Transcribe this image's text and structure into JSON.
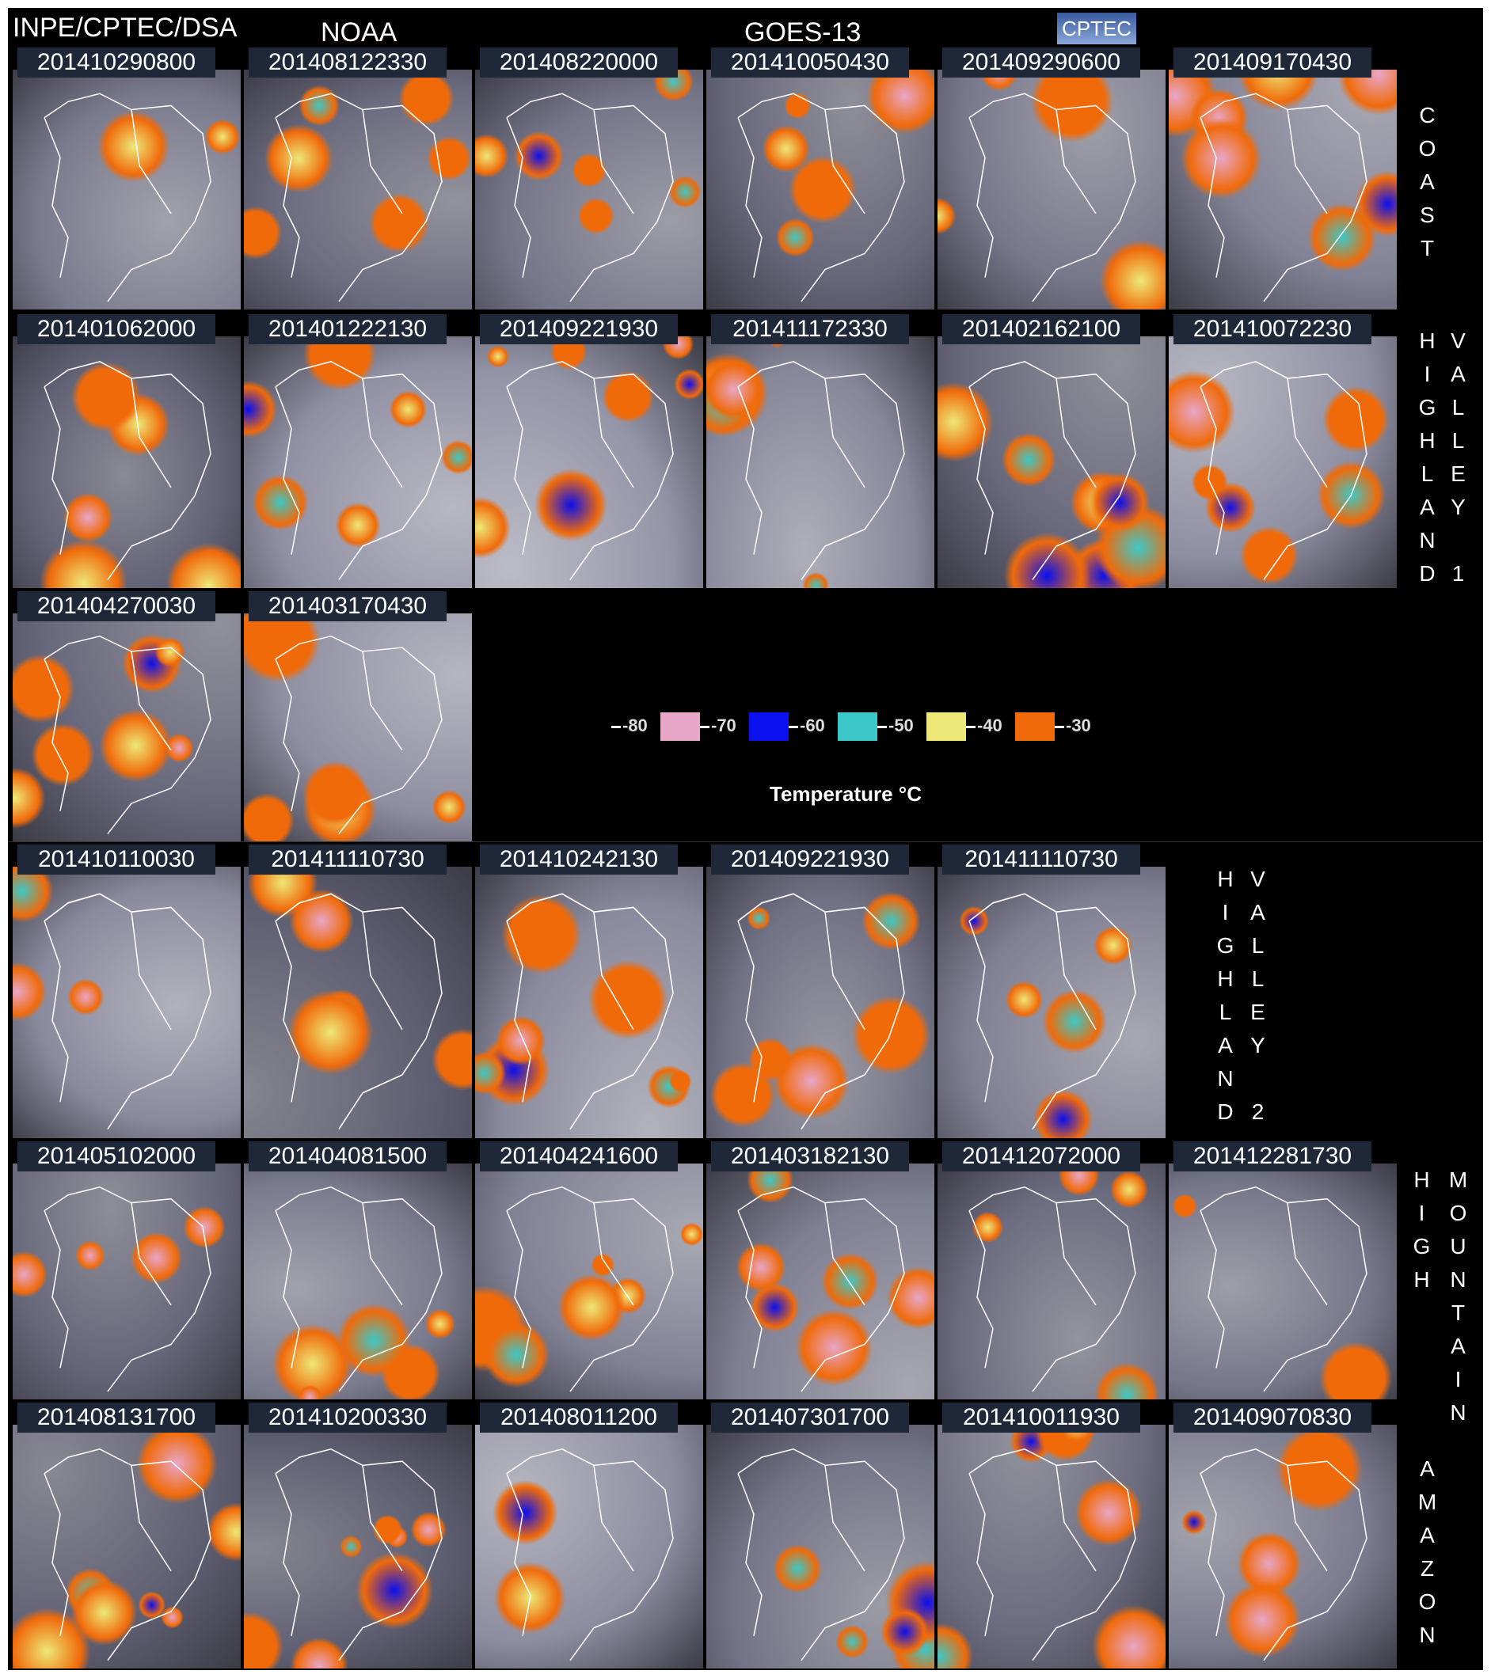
{
  "header": {
    "source": "INPE/CPTEC/DSA",
    "agency": "NOAA",
    "satellite": "GOES-13",
    "logo": "CPTEC"
  },
  "groups": [
    {
      "label": [
        "COAST"
      ],
      "rows": [
        [
          "201410290800",
          "201408122330",
          "201408220000",
          "201410050430",
          "201409290600",
          "201409170430"
        ]
      ]
    },
    {
      "label": [
        "HIGHLAND",
        "VALLEY 1"
      ],
      "rows": [
        [
          "201401062000",
          "201401222130",
          "201409221930",
          "201411172330",
          "201402162100",
          "201410072230"
        ],
        [
          "201404270030",
          "201403170430"
        ]
      ]
    },
    {
      "label": [
        "HIGHLAND",
        "VALLEY 2"
      ],
      "rows": [
        [
          "201410110030",
          "201411110730",
          "201410242130",
          "201409221930",
          "201411110730"
        ]
      ]
    },
    {
      "label": [
        "HIGH",
        "MOUNTAIN"
      ],
      "rows": [
        [
          "201405102000",
          "201404081500",
          "201404241600",
          "201403182130",
          "201412072000",
          "201412281730"
        ]
      ]
    },
    {
      "label": [
        "AMAZON"
      ],
      "rows": [
        [
          "201408131700",
          "201410200330",
          "201408011200",
          "201407301700",
          "201410011930",
          "201409070830"
        ]
      ]
    }
  ],
  "legend": {
    "ticks": [
      -80,
      -70,
      -60,
      -50,
      -40,
      -30
    ],
    "colors": [
      "#e8a6c8",
      "#0a10ee",
      "#3cc8c8",
      "#eee878",
      "#f06a0a"
    ],
    "title": "Temperature °C"
  }
}
